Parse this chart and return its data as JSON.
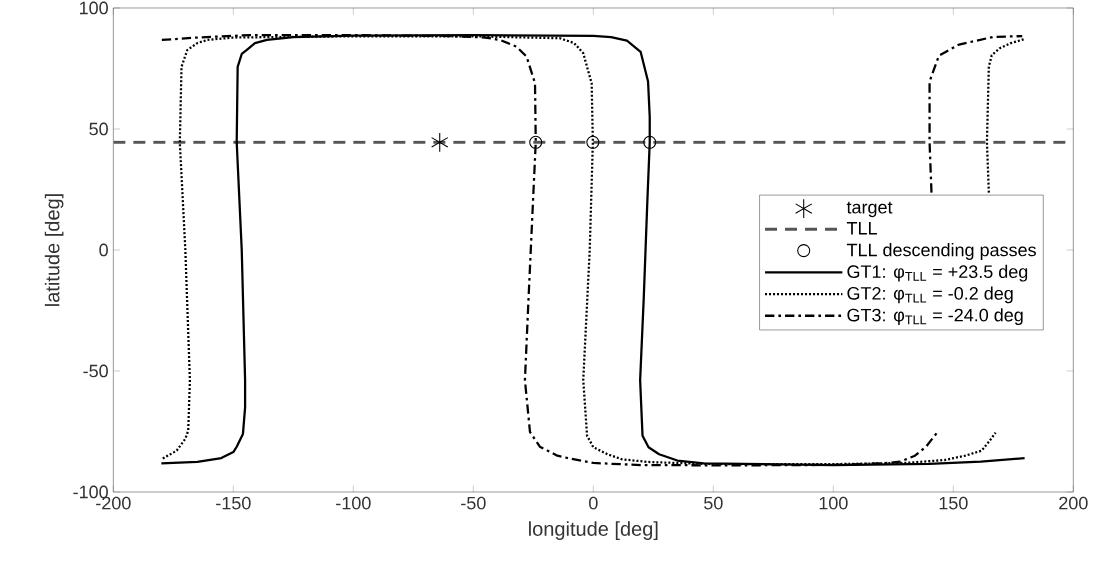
{
  "chart_data": {
    "type": "line",
    "xlabel": "longitude [deg]",
    "ylabel": "latitude [deg]",
    "xlim": [
      -200,
      200
    ],
    "ylim": [
      -100,
      100
    ],
    "xticks": [
      -200,
      -150,
      -100,
      -50,
      0,
      50,
      100,
      150,
      200
    ],
    "yticks": [
      -100,
      -50,
      0,
      50,
      100
    ],
    "legend": "right",
    "series": [
      {
        "name": "target",
        "type": "scatter",
        "marker": "cross",
        "color": "#000000",
        "x": [
          -64
        ],
        "values": [
          44.5
        ]
      },
      {
        "name": "TLL",
        "type": "line",
        "line_style": "dashed",
        "color": "#555555",
        "x": [
          -200,
          200
        ],
        "values": [
          44.5,
          44.5
        ]
      },
      {
        "name": "TLL descending passes",
        "type": "scatter",
        "marker": "circle",
        "color": "#000000",
        "x": [
          -24.0,
          -0.2,
          23.5
        ],
        "values": [
          44.5,
          44.5,
          44.5
        ]
      },
      {
        "name": "GT1: φ$_{TLL}$ = +23.5 deg",
        "type": "line",
        "line_style": "solid",
        "color": "#000000",
        "x": [
          -180,
          -165,
          -155,
          -150,
          -148.6,
          -146,
          -145.1,
          -145.1,
          -146.5,
          -148.6,
          -148.2,
          -146.5,
          -144.5,
          -141,
          -136,
          -125,
          -100,
          -50,
          0,
          7.4,
          14,
          19.7,
          22.8,
          23.5,
          23.5,
          22.5,
          21,
          19.5,
          20.5,
          23,
          27.4,
          35,
          46,
          100,
          140,
          161.5,
          179.7
        ],
        "values": [
          -88.2,
          -87.6,
          -86,
          -83.5,
          -81.3,
          -76,
          -65,
          -53.8,
          0,
          44.5,
          75.7,
          81,
          82.6,
          85.5,
          86.8,
          88,
          88.6,
          88.8,
          88.5,
          88,
          86.5,
          81.9,
          69.6,
          55,
          44.5,
          20,
          -20,
          -53.8,
          -76.8,
          -81.5,
          -84.4,
          -87,
          -88.2,
          -88.9,
          -88.4,
          -87.5,
          -86
        ]
      },
      {
        "name": "GT2: φ$_{TLL}$ =    -0.2 deg",
        "type": "line",
        "line_style": "dotted",
        "color": "#000000",
        "x": [
          -179.4,
          -173.6,
          -170,
          -168.8,
          -168.1,
          -170,
          -172.3,
          -171.6,
          -169.2,
          -165,
          -160.9,
          -150,
          -100,
          -50,
          -13.9,
          -8,
          -4.2,
          -0.7,
          -0.2,
          -1.5,
          -4.2,
          -2.6,
          0,
          5.9,
          12,
          22.8,
          50,
          100,
          130,
          146.3,
          155,
          161.8,
          165,
          167.6,
          null,
          164.8,
          164,
          164.8,
          166,
          169.4,
          174,
          179.5
        ],
        "values": [
          -86.2,
          -82.9,
          -78,
          -74.6,
          -53.8,
          0,
          44.5,
          75.7,
          82.6,
          85.5,
          86.8,
          87.8,
          88.3,
          88.3,
          87.5,
          85.5,
          81.3,
          68.9,
          44.5,
          0,
          -53.8,
          -76.8,
          -81.5,
          -84.4,
          -86.5,
          -87.6,
          -88.5,
          -88.5,
          -88,
          -86.8,
          -85,
          -82.9,
          -79,
          -75.5,
          null,
          23.7,
          44.5,
          75.7,
          80.5,
          83.4,
          85.5,
          87.1
        ]
      },
      {
        "name": "GT3: φ$_{TLL}$ = -24.0 deg",
        "type": "line",
        "line_style": "dashdot",
        "color": "#000000",
        "x": [
          -179.8,
          -165,
          -143,
          -100,
          -60,
          -45,
          -38.9,
          -32,
          -27.8,
          -24.3,
          -24,
          -25,
          -27,
          -28.5,
          -26.4,
          -22.3,
          -15,
          -9.7,
          0,
          20,
          60,
          100,
          120,
          127.8,
          134,
          138.6,
          143.2,
          null,
          140.9,
          140.1,
          140.1,
          144,
          152.4,
          166.4,
          178.7
        ],
        "values": [
          86.8,
          87.8,
          88.8,
          88.8,
          88.4,
          87.8,
          86.8,
          84,
          79.9,
          68.9,
          44.5,
          23,
          -20,
          -53.8,
          -75.2,
          -81.3,
          -85,
          -86.2,
          -88,
          -88.9,
          -89,
          -88.8,
          -88.2,
          -87.5,
          -85,
          -81.3,
          -75.5,
          null,
          23.7,
          44.5,
          69.6,
          80.3,
          84.9,
          88,
          88.4
        ]
      }
    ]
  }
}
